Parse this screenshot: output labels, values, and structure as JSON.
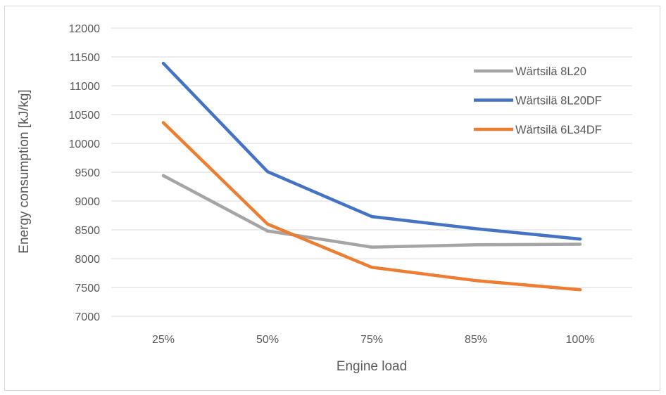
{
  "chart_data": {
    "type": "line",
    "title": "",
    "xlabel": "Engine load",
    "ylabel": "Energy consumption [kJ/kg]",
    "categories": [
      "25%",
      "50%",
      "75%",
      "85%",
      "100%"
    ],
    "ylim": [
      7000,
      12000
    ],
    "ytick_step": 500,
    "grid": "horizontal",
    "legend_position": "top-right",
    "series": [
      {
        "name": "Wärtsilä 8L20",
        "color": "#a5a5a5",
        "values": [
          9440,
          8480,
          8200,
          8240,
          8250
        ]
      },
      {
        "name": "Wärtsilä 8L20DF",
        "color": "#4472c4",
        "values": [
          11390,
          9510,
          8730,
          8520,
          8340
        ]
      },
      {
        "name": "Wärtsilä 6L34DF",
        "color": "#ed7d31",
        "values": [
          10360,
          8600,
          7850,
          7620,
          7460
        ]
      }
    ]
  }
}
